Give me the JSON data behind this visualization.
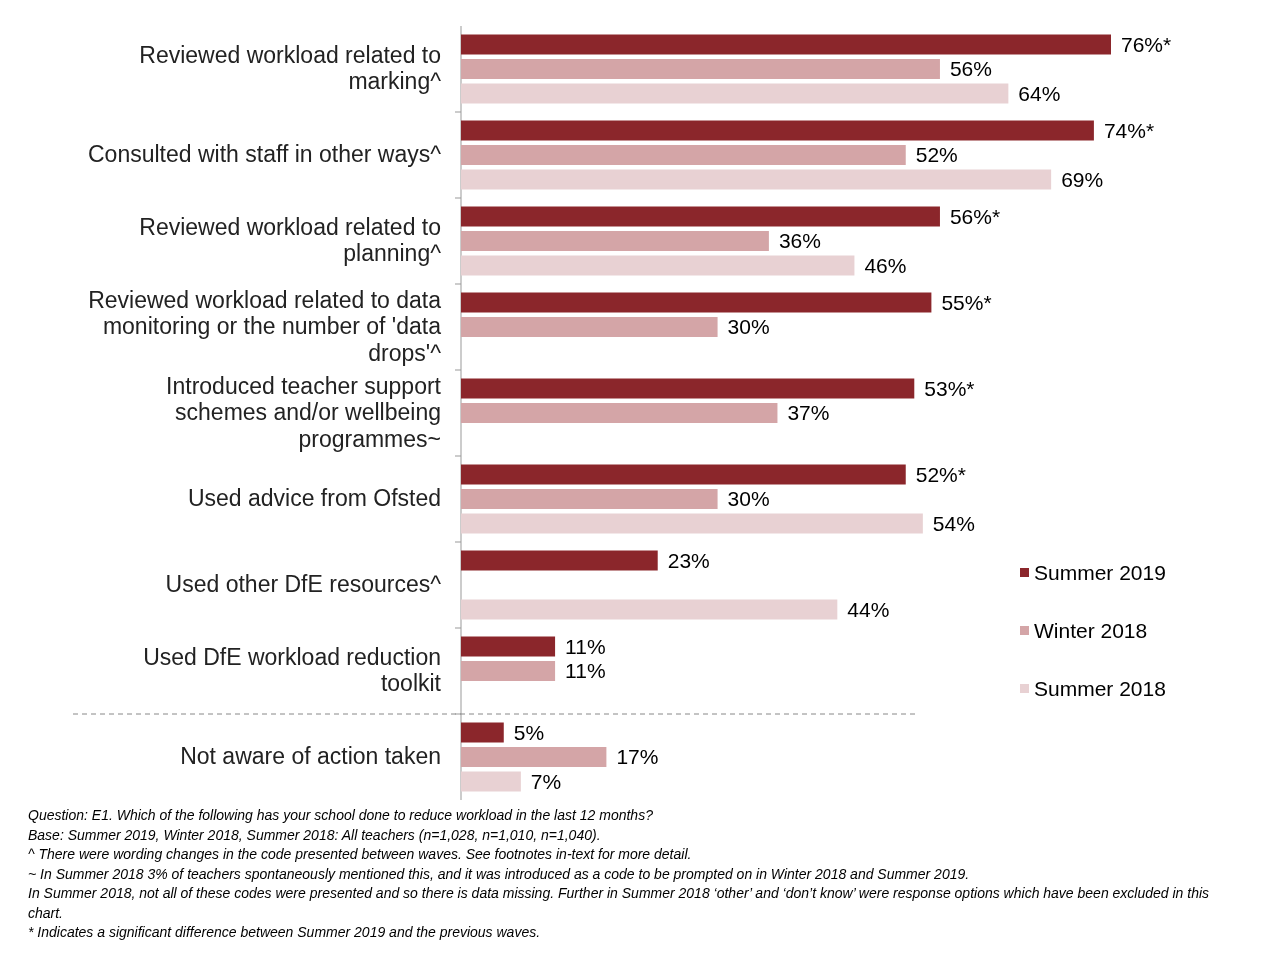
{
  "chart_data": {
    "type": "bar",
    "orientation": "horizontal",
    "categories": [
      "Reviewed workload related to marking^",
      "Consulted with staff in other ways^",
      "Reviewed workload related to planning^",
      "Reviewed workload related to data monitoring or the number of 'data drops'^",
      "Introduced teacher support schemes and/or wellbeing programmes~",
      "Used advice from Ofsted",
      "Used other DfE resources^",
      "Used DfE workload reduction toolkit",
      "Not aware of action taken"
    ],
    "series": [
      {
        "name": "Summer 2019",
        "color": "#8b262b",
        "values": [
          76,
          74,
          56,
          55,
          53,
          52,
          23,
          11,
          5
        ],
        "value_labels": [
          "76%*",
          "74%*",
          "56%*",
          "55%*",
          "53%*",
          "52%*",
          "23%",
          "11%",
          "5%"
        ]
      },
      {
        "name": "Winter 2018",
        "color": "#d4a5a7",
        "values": [
          56,
          52,
          36,
          30,
          37,
          30,
          null,
          11,
          17
        ],
        "value_labels": [
          "56%",
          "52%",
          "36%",
          "30%",
          "37%",
          "30%",
          null,
          "11%",
          "17%"
        ]
      },
      {
        "name": "Summer 2018",
        "color": "#e8d1d3",
        "values": [
          64,
          69,
          46,
          null,
          null,
          54,
          44,
          null,
          7
        ],
        "value_labels": [
          "64%",
          "69%",
          "46%",
          null,
          null,
          "54%",
          "44%",
          null,
          "7%"
        ]
      }
    ],
    "legend": "right",
    "annotations": [
      "Question: E1. Which of the following has your school done to reduce workload in the last 12 months?",
      "Base: Summer 2019, Winter 2018, Summer 2018: All teachers (n=1,028, n=1,010, n=1,040).",
      "^ There were wording changes in the code presented between waves. See footnotes in-text for more detail.",
      "~ In Summer 2018 3% of teachers spontaneously mentioned this, and it was introduced as a code to be prompted on in Winter 2018 and Summer 2019.",
      "In Summer 2018, not all of these codes were presented and so there is data missing. Further in Summer 2018 ‘other’ and ‘don’t know’ were response options which have been excluded in this chart.",
      "* Indicates a significant difference between Summer 2019 and the previous waves."
    ]
  }
}
